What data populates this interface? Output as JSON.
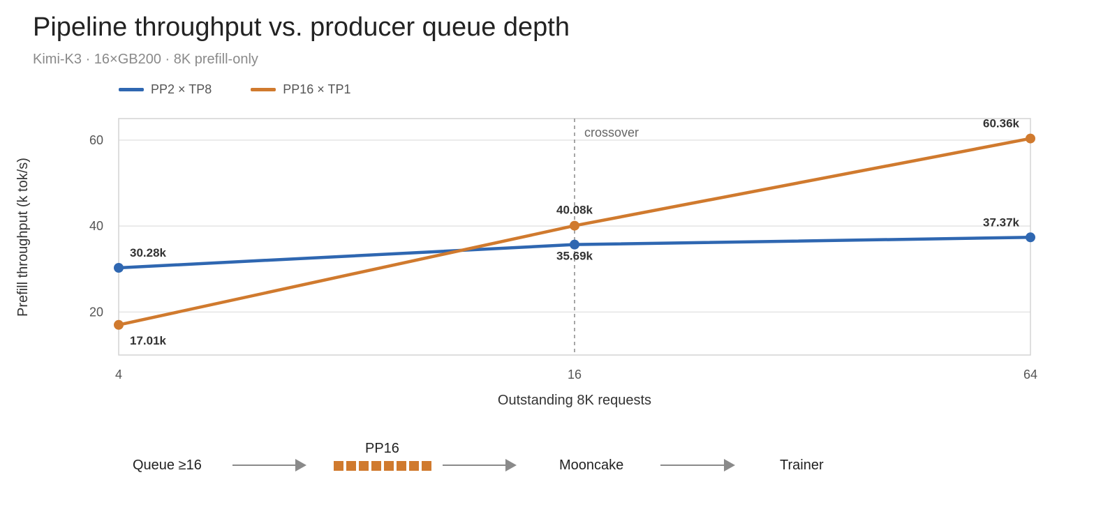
{
  "header": {
    "title": "Pipeline throughput vs. producer queue depth",
    "subtitle": "Kimi-K3 · 16×GB200 · 8K prefill-only"
  },
  "legend": [
    {
      "label": "PP2 × TP8",
      "color": "#2f67b1"
    },
    {
      "label": "PP16 × TP1",
      "color": "#d07a2e"
    }
  ],
  "chart_data": {
    "type": "line",
    "title": "Pipeline throughput vs. producer queue depth",
    "subtitle": "Kimi-K3 · 16×GB200 · 8K prefill-only",
    "xlabel": "Outstanding 8K requests",
    "ylabel": "Prefill throughput (k tok/s)",
    "x": [
      4,
      16,
      64
    ],
    "x_scale": "log2",
    "x_ticks": [
      "4",
      "16",
      "64"
    ],
    "ylim": [
      10,
      65
    ],
    "y_ticks": [
      20,
      40,
      60
    ],
    "grid": true,
    "legend_position": "top-left",
    "series": [
      {
        "name": "PP2 × TP8",
        "color": "#2f67b1",
        "values": [
          30.28,
          35.69,
          37.37
        ],
        "labels": [
          "30.28k",
          "35.69k",
          "37.37k"
        ]
      },
      {
        "name": "PP16 × TP1",
        "color": "#d07a2e",
        "values": [
          17.01,
          40.08,
          60.36
        ],
        "labels": [
          "17.01k",
          "40.08k",
          "60.36k"
        ]
      }
    ],
    "annotations": [
      {
        "text": "crossover",
        "x": 16
      }
    ]
  },
  "flow": {
    "queue_label": "Queue ≥16",
    "stage_label": "PP16",
    "stage_blocks": 8,
    "store_label": "Mooncake",
    "trainer_label": "Trainer",
    "block_color": "#d07a2e"
  }
}
